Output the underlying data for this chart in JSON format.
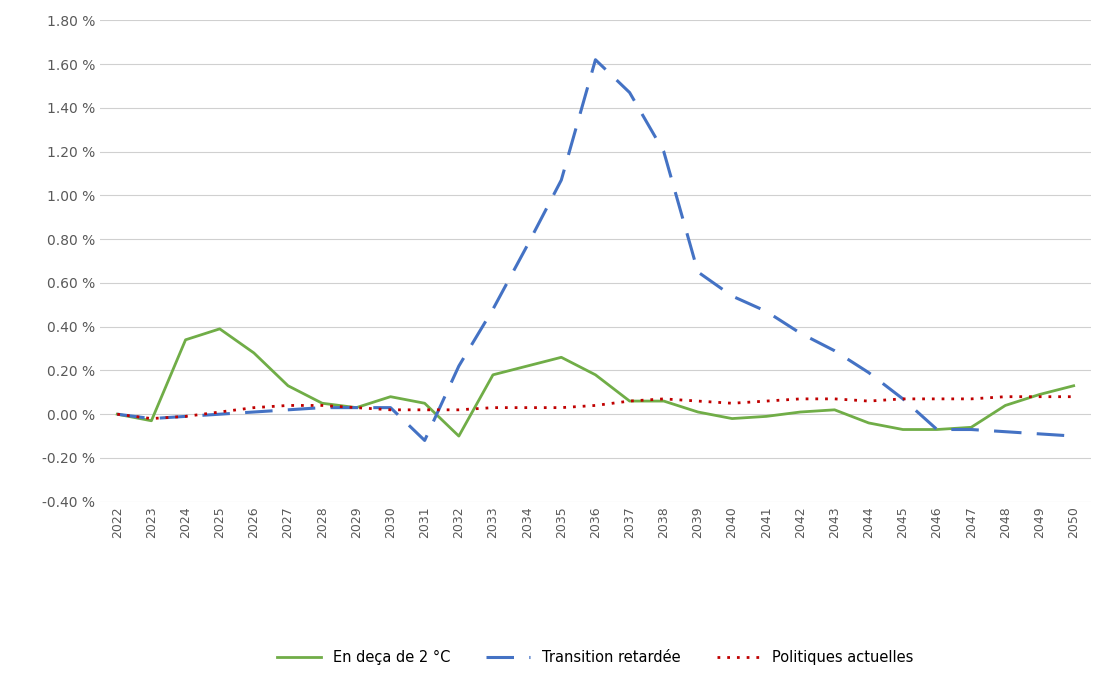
{
  "years": [
    2022,
    2023,
    2024,
    2025,
    2026,
    2027,
    2028,
    2029,
    2030,
    2031,
    2032,
    2033,
    2034,
    2035,
    2036,
    2037,
    2038,
    2039,
    2040,
    2041,
    2042,
    2043,
    2044,
    2045,
    2046,
    2047,
    2048,
    2049,
    2050
  ],
  "below2": [
    0.0,
    -0.03,
    0.34,
    0.39,
    0.28,
    0.13,
    0.05,
    0.03,
    0.08,
    0.05,
    -0.1,
    0.18,
    0.22,
    0.26,
    0.18,
    0.06,
    0.06,
    0.01,
    -0.02,
    -0.01,
    0.01,
    0.02,
    -0.04,
    -0.07,
    -0.07,
    -0.06,
    0.04,
    0.09,
    0.13
  ],
  "delayed": [
    0.0,
    -0.02,
    -0.01,
    0.0,
    0.01,
    0.02,
    0.03,
    0.03,
    0.03,
    -0.12,
    0.22,
    0.48,
    0.77,
    1.07,
    1.62,
    1.47,
    1.2,
    0.65,
    0.54,
    0.47,
    0.37,
    0.29,
    0.19,
    0.07,
    -0.07,
    -0.07,
    -0.08,
    -0.09,
    -0.1
  ],
  "current": [
    0.0,
    -0.02,
    -0.01,
    0.01,
    0.03,
    0.04,
    0.04,
    0.03,
    0.02,
    0.02,
    0.02,
    0.03,
    0.03,
    0.03,
    0.04,
    0.06,
    0.07,
    0.06,
    0.05,
    0.06,
    0.07,
    0.07,
    0.06,
    0.07,
    0.07,
    0.07,
    0.08,
    0.08,
    0.08
  ],
  "below2_color": "#70AD47",
  "delayed_color": "#4472C4",
  "current_color": "#C00000",
  "ylim_min": -0.4,
  "ylim_max": 1.8,
  "yticks": [
    -0.4,
    -0.2,
    0.0,
    0.2,
    0.4,
    0.6,
    0.8,
    1.0,
    1.2,
    1.4,
    1.6,
    1.8
  ],
  "ytick_labels": [
    "-0.40 %",
    "-0.20 %",
    "0.00 %",
    "0.20 %",
    "0.40 %",
    "0.60 %",
    "0.80 %",
    "1.00 %",
    "1.20 %",
    "1.40 %",
    "1.60 %",
    "1.80 %"
  ],
  "legend_below2": "En deça de 2 °C",
  "legend_delayed": "Transition retardée",
  "legend_current": "Politiques actuelles",
  "background_color": "#ffffff",
  "grid_color": "#d0d0d0"
}
